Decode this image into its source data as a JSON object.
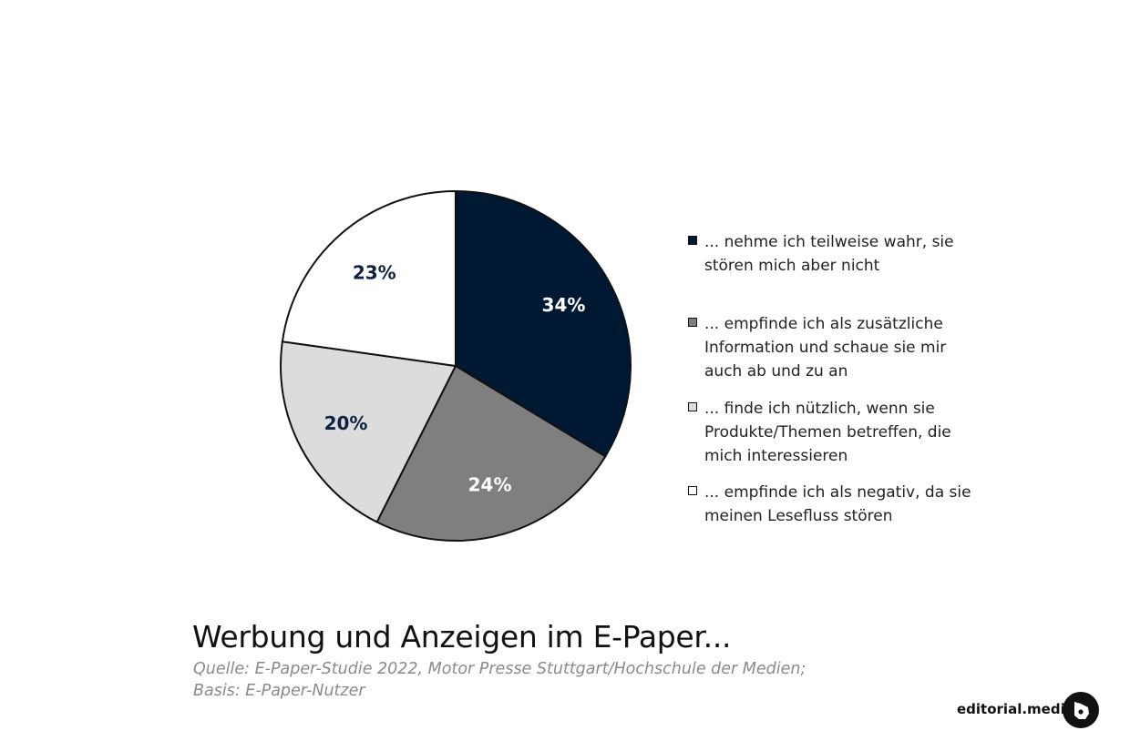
{
  "chart_data": {
    "type": "pie",
    "title": "Werbung und Anzeigen im E-Paper...",
    "slices": [
      {
        "label": "... nehme ich teilweise wahr, sie stören mich aber nicht",
        "value": 34,
        "display": "34%",
        "color": "#001933",
        "text_color": "#ffffff"
      },
      {
        "label": "... empfinde ich als zusätzliche Information und schaue sie mir auch ab und zu an",
        "value": 24,
        "display": "24%",
        "color": "#7f7f7f",
        "text_color": "#ffffff"
      },
      {
        "label": "... finde ich nützlich, wenn sie Produkte/Themen betreffen, die mich interessieren",
        "value": 20,
        "display": "20%",
        "color": "#dcdcdc",
        "text_color": "#0d2340"
      },
      {
        "label": "... empfinde ich als negativ, da sie meinen Lesefluss stören",
        "value": 23,
        "display": "23%",
        "color": "#ffffff",
        "text_color": "#0d2340"
      }
    ],
    "legend_position": "right"
  },
  "legend": [
    {
      "lines": [
        "... nehme ich teilweise wahr, sie",
        "stören mich aber nicht"
      ],
      "color": "#001933"
    },
    {
      "lines": [
        "... empfinde ich als zusätzliche",
        "Information und schaue sie mir",
        "auch ab und zu an"
      ],
      "color": "#7f7f7f"
    },
    {
      "lines": [
        "... finde ich nützlich, wenn sie",
        "Produkte/Themen betreffen, die",
        "mich interessieren"
      ],
      "color": "#dcdcdc"
    },
    {
      "lines": [
        "... empfinde ich als negativ, da sie",
        "meinen Lesefluss stören"
      ],
      "color": "#ffffff"
    }
  ],
  "title": "Werbung und Anzeigen im E-Paper...",
  "source_lines": [
    "Quelle: E-Paper-Studie 2022, Motor Presse Stuttgart/Hochschule der Medien;",
    "Basis: E-Paper-Nutzer"
  ],
  "brand": {
    "name": "editorial.media",
    "logo_icon": "editorial-media-logo-icon"
  }
}
